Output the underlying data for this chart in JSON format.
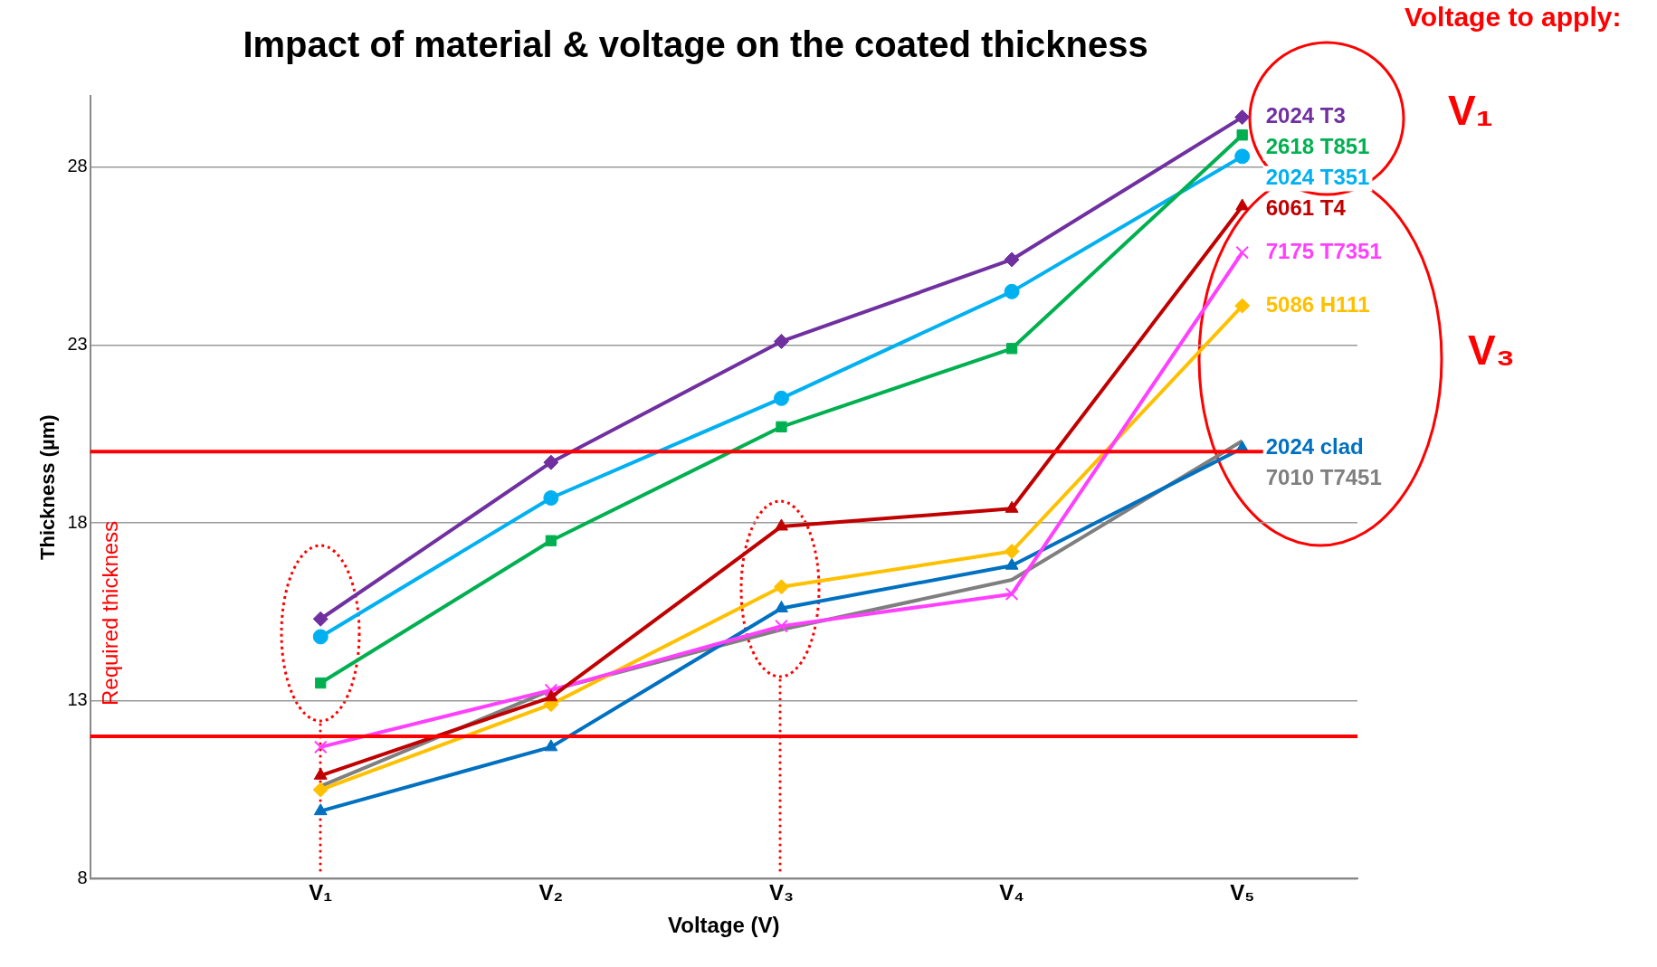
{
  "chart_data": {
    "type": "line",
    "title": "Impact of material & voltage on the coated thickness",
    "xlabel": "Voltage (V)",
    "ylabel": "Thickness (µm)",
    "categories": [
      "V₁",
      "V₂",
      "V₃",
      "V₄",
      "V₅"
    ],
    "ylim": [
      8,
      30
    ],
    "yticks": [
      8,
      13,
      18,
      23,
      28
    ],
    "grid": "y",
    "legend": false,
    "series": [
      {
        "name": "2024 T3",
        "color": "#7030a0",
        "marker": "diamond",
        "values": [
          15.3,
          19.7,
          23.1,
          25.4,
          29.4
        ]
      },
      {
        "name": "2618 T851",
        "color": "#00b050",
        "marker": "square",
        "values": [
          13.5,
          17.5,
          20.7,
          22.9,
          28.9
        ]
      },
      {
        "name": "2024 T351",
        "color": "#00b0f0",
        "marker": "circle",
        "values": [
          14.8,
          18.7,
          21.5,
          24.5,
          28.3
        ]
      },
      {
        "name": "6061 T4",
        "color": "#c00000",
        "marker": "triangle",
        "values": [
          10.9,
          13.1,
          17.9,
          18.4,
          26.9
        ]
      },
      {
        "name": "7175 T7351",
        "color": "#ff40ff",
        "marker": "cross",
        "values": [
          11.7,
          13.3,
          15.1,
          16.0,
          25.6
        ]
      },
      {
        "name": "5086 H111",
        "color": "#ffc000",
        "marker": "diamond",
        "values": [
          10.5,
          12.9,
          16.2,
          17.2,
          24.1
        ]
      },
      {
        "name": "2024 clad",
        "color": "#0070c0",
        "marker": "triangle",
        "values": [
          9.9,
          11.7,
          15.6,
          16.8,
          20.1
        ]
      },
      {
        "name": "7010 T7451",
        "color": "#7f7f7f",
        "marker": "none",
        "values": [
          10.6,
          13.3,
          15.0,
          16.4,
          20.3
        ]
      }
    ],
    "ref_lines": [
      {
        "axis": "y",
        "value": 20,
        "color": "#ff0000"
      },
      {
        "axis": "y",
        "value": 12,
        "color": "#ff0000"
      }
    ],
    "annotations": [
      "Required thickness",
      "Voltage to apply:",
      "V₁",
      "V₃"
    ]
  }
}
